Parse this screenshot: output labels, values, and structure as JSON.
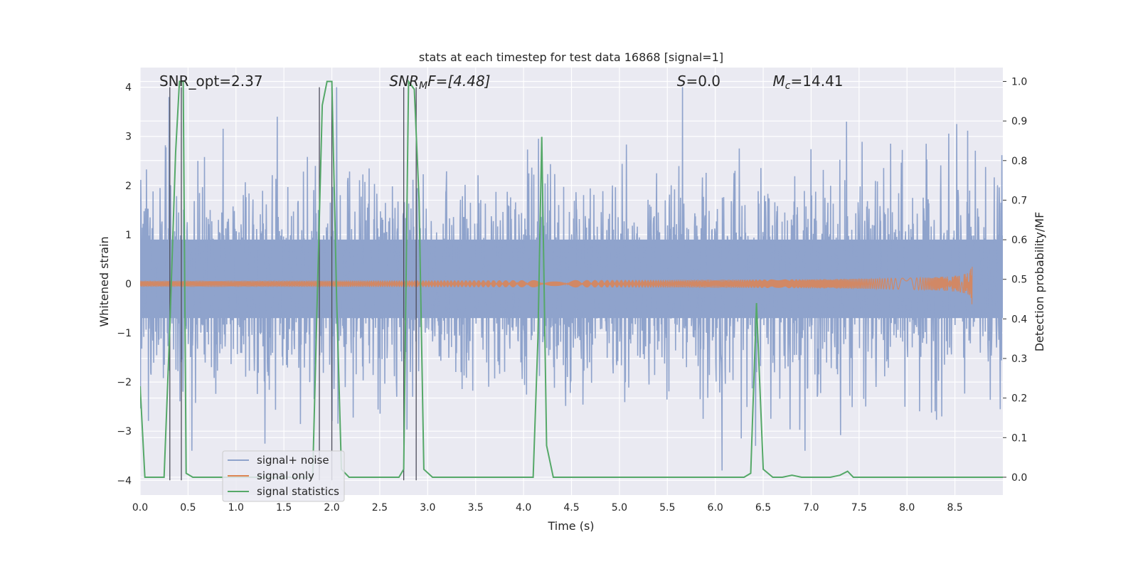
{
  "chart_data": {
    "type": "line",
    "title": "stats at each timestep for test data 16868 [signal=1]",
    "xlabel": "Time (s)",
    "ylabel_left": "Whitened strain",
    "ylabel_right": "Detection probability/MF",
    "xlim": [
      0.0,
      9.0
    ],
    "ylim_left": [
      -4.3,
      4.4
    ],
    "ylim_right": [
      -0.045,
      1.035
    ],
    "x_ticks": [
      0.0,
      0.5,
      1.0,
      1.5,
      2.0,
      2.5,
      3.0,
      3.5,
      4.0,
      4.5,
      5.0,
      5.5,
      6.0,
      6.5,
      7.0,
      7.5,
      8.0,
      8.5
    ],
    "x_tick_labels": [
      "0.0",
      "0.5",
      "1.0",
      "1.5",
      "2.0",
      "2.5",
      "3.0",
      "3.5",
      "4.0",
      "4.5",
      "5.0",
      "5.5",
      "6.0",
      "6.5",
      "7.0",
      "7.5",
      "8.0",
      "8.5"
    ],
    "y_left_ticks": [
      -4,
      -3,
      -2,
      -1,
      0,
      1,
      2,
      3,
      4
    ],
    "y_left_tick_labels": [
      "−4",
      "−3",
      "−2",
      "−1",
      "0",
      "1",
      "2",
      "3",
      "4"
    ],
    "y_right_ticks": [
      0.0,
      0.1,
      0.2,
      0.3,
      0.4,
      0.5,
      0.6,
      0.7,
      0.8,
      0.9,
      1.0
    ],
    "y_right_tick_labels": [
      "0.0",
      "0.1",
      "0.2",
      "0.3",
      "0.4",
      "0.5",
      "0.6",
      "0.7",
      "0.8",
      "0.9",
      "1.0"
    ],
    "annotations": {
      "snr_opt": "SNR_opt=2.37",
      "snr_mf_sym": "SNR",
      "snr_mf_sub": "M",
      "snr_mf_rest": "F=[4.48]",
      "s_sym": "S",
      "s_rest": "=0.0",
      "mc_sym": "M",
      "mc_sub": "c",
      "mc_rest": "=14.41"
    },
    "annotation_x": [
      0.2,
      2.6,
      5.6,
      6.6
    ],
    "vertical_markers": [
      0.31,
      0.43,
      1.87,
      2.0,
      2.75,
      2.88
    ],
    "vertical_marker_range": [
      -4.0,
      4.0
    ],
    "legend": {
      "location": "lower left",
      "entries": [
        "signal+ noise",
        "signal only",
        "signal statistics"
      ]
    },
    "colors": {
      "noise": "#8fa3cc",
      "signal": "#dd8452",
      "stats": "#55a868",
      "marker": "#4c4c5a",
      "background": "#eaeaf2",
      "grid": "#ffffff"
    },
    "series": [
      {
        "name": "signal statistics",
        "axis": "right",
        "x": [
          0.0,
          0.05,
          0.1,
          0.25,
          0.31,
          0.37,
          0.41,
          0.45,
          0.48,
          0.55,
          0.7,
          1.0,
          1.5,
          1.8,
          1.84,
          1.9,
          1.95,
          2.0,
          2.05,
          2.1,
          2.18,
          2.5,
          2.7,
          2.75,
          2.8,
          2.86,
          2.91,
          2.96,
          3.05,
          3.5,
          4.0,
          4.1,
          4.15,
          4.19,
          4.24,
          4.31,
          4.5,
          5.0,
          6.0,
          6.3,
          6.37,
          6.43,
          6.5,
          6.6,
          6.7,
          6.8,
          6.9,
          7.0,
          7.2,
          7.3,
          7.38,
          7.44,
          7.6,
          8.0,
          8.5,
          9.0
        ],
        "y": [
          0.23,
          0.0,
          0.0,
          0.0,
          0.38,
          0.82,
          1.0,
          1.0,
          0.01,
          0.0,
          0.0,
          0.0,
          0.0,
          0.0,
          0.38,
          0.94,
          1.0,
          1.0,
          0.45,
          0.02,
          0.0,
          0.0,
          0.0,
          0.02,
          1.0,
          0.98,
          0.7,
          0.02,
          0.0,
          0.0,
          0.0,
          0.0,
          0.35,
          0.86,
          0.08,
          0.0,
          0.0,
          0.0,
          0.0,
          0.0,
          0.01,
          0.44,
          0.02,
          0.0,
          0.0,
          0.005,
          0.0,
          0.0,
          0.0,
          0.005,
          0.015,
          0.0,
          0.0,
          0.0,
          0.0,
          0.0
        ]
      },
      {
        "name": "signal+ noise",
        "axis": "left",
        "description_of_values": "dense noise trace between about -3.8 and 4.0 whitened strain, drawn procedurally",
        "envelope_core": [
          -0.7,
          0.9
        ],
        "peaks": [
          [
            0.3,
            3.8
          ],
          [
            1.43,
            3.4
          ],
          [
            2.05,
            4.0
          ],
          [
            5.66,
            4.0
          ],
          [
            6.07,
            -3.8
          ],
          [
            7.37,
            3.3
          ],
          [
            8.52,
            3.25
          ]
        ]
      },
      {
        "name": "signal only",
        "axis": "left",
        "description_of_values": "small chirp growing near end",
        "chirp_end": 8.68,
        "chirp_peak_amplitude": 0.5
      }
    ]
  }
}
